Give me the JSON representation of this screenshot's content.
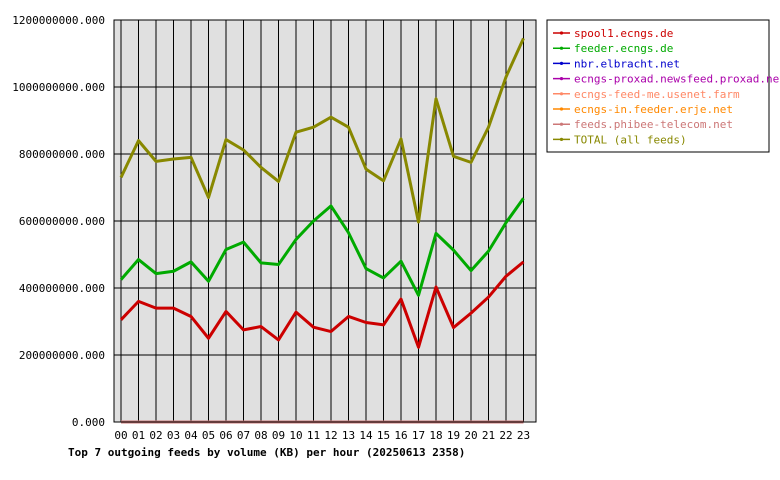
{
  "chart_data": {
    "type": "line",
    "title": "Top 7 outgoing feeds by volume (KB) per hour (20250613 2358)",
    "xlabel": "",
    "ylabel": "",
    "x": [
      "00",
      "01",
      "02",
      "03",
      "04",
      "05",
      "06",
      "07",
      "08",
      "09",
      "10",
      "11",
      "12",
      "13",
      "14",
      "15",
      "16",
      "17",
      "18",
      "19",
      "20",
      "21",
      "22",
      "23"
    ],
    "ylim": [
      0,
      1200000000
    ],
    "yticks": [
      "0.000",
      "200000000.000",
      "400000000.000",
      "600000000.000",
      "800000000.000",
      "1000000000.000",
      "1200000000.000"
    ],
    "ytick_values": [
      0,
      200000000,
      400000000,
      600000000,
      800000000,
      1000000000,
      1200000000
    ],
    "grid": true,
    "legend_position": "right",
    "series": [
      {
        "name": "spool1.ecngs.de",
        "color": "#cc0000",
        "values": [
          305000000,
          360000000,
          340000000,
          340000000,
          315000000,
          250000000,
          330000000,
          275000000,
          285000000,
          245000000,
          328000000,
          283000000,
          270000000,
          315000000,
          297000000,
          290000000,
          367000000,
          223000000,
          403000000,
          282000000,
          325000000,
          373000000,
          435000000,
          478000000
        ]
      },
      {
        "name": "feeder.ecngs.de",
        "color": "#00aa00",
        "values": [
          425000000,
          485000000,
          443000000,
          450000000,
          478000000,
          420000000,
          515000000,
          537000000,
          475000000,
          470000000,
          545000000,
          600000000,
          645000000,
          565000000,
          458000000,
          430000000,
          480000000,
          378000000,
          563000000,
          513000000,
          452000000,
          510000000,
          595000000,
          668000000
        ]
      },
      {
        "name": "nbr.elbracht.net",
        "color": "#0000cc",
        "values": [
          0,
          0,
          0,
          0,
          0,
          0,
          0,
          0,
          0,
          0,
          0,
          0,
          0,
          0,
          0,
          0,
          0,
          0,
          0,
          0,
          0,
          0,
          0,
          0
        ]
      },
      {
        "name": "ecngs-proxad.newsfeed.proxad.net",
        "color": "#aa00aa",
        "values": [
          0,
          0,
          0,
          0,
          0,
          0,
          0,
          0,
          0,
          0,
          0,
          0,
          0,
          0,
          0,
          0,
          0,
          0,
          0,
          0,
          0,
          0,
          0,
          0
        ]
      },
      {
        "name": "ecngs-feed-me.usenet.farm",
        "color": "#ff8866",
        "values": [
          0,
          0,
          0,
          0,
          0,
          0,
          0,
          0,
          0,
          0,
          0,
          0,
          0,
          0,
          0,
          0,
          0,
          0,
          0,
          0,
          0,
          0,
          0,
          0
        ]
      },
      {
        "name": "ecngs-in.feeder.erje.net",
        "color": "#ff8800",
        "values": [
          0,
          0,
          0,
          0,
          0,
          0,
          0,
          0,
          0,
          0,
          0,
          0,
          0,
          0,
          0,
          0,
          0,
          0,
          0,
          0,
          0,
          0,
          0,
          0
        ]
      },
      {
        "name": "feeds.phibee-telecom.net",
        "color": "#cc7777",
        "values": [
          0,
          0,
          0,
          0,
          0,
          0,
          0,
          0,
          0,
          0,
          0,
          0,
          0,
          0,
          0,
          0,
          0,
          0,
          0,
          0,
          0,
          0,
          0,
          0
        ]
      },
      {
        "name": "TOTAL (all feeds)",
        "color": "#888800",
        "values": [
          730000000,
          840000000,
          778000000,
          785000000,
          790000000,
          670000000,
          843000000,
          812000000,
          760000000,
          718000000,
          865000000,
          880000000,
          910000000,
          880000000,
          755000000,
          720000000,
          845000000,
          597000000,
          965000000,
          793000000,
          775000000,
          880000000,
          1030000000,
          1145000000
        ]
      }
    ]
  }
}
